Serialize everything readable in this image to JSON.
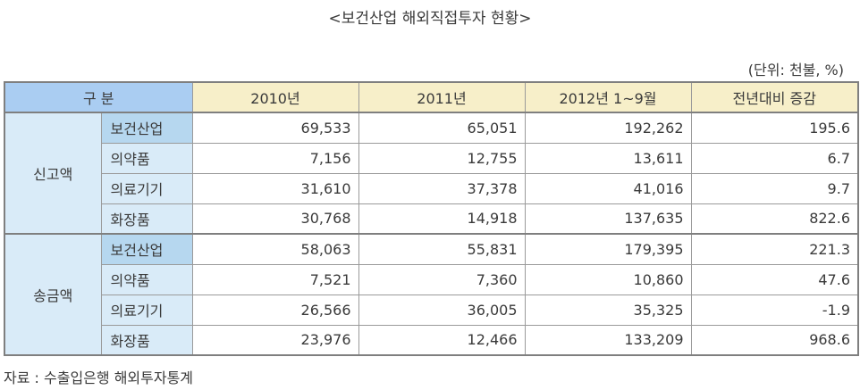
{
  "title": "<보건산업 해외직접투자 현황>",
  "unit": "(단위: 천불, %)",
  "table": {
    "headers": [
      "구 분",
      "2010년",
      "2011년",
      "2012년 1~9월",
      "전년대비 증감"
    ],
    "groups": [
      {
        "label": "신고액",
        "rows": [
          {
            "name": "보건산업",
            "values": [
              "69,533",
              "65,051",
              "192,262",
              "195.6"
            ]
          },
          {
            "name": "의약품",
            "values": [
              "7,156",
              "12,755",
              "13,611",
              "6.7"
            ]
          },
          {
            "name": "의료기기",
            "values": [
              "31,610",
              "37,378",
              "41,016",
              "9.7"
            ]
          },
          {
            "name": "화장품",
            "values": [
              "30,768",
              "14,918",
              "137,635",
              "822.6"
            ]
          }
        ]
      },
      {
        "label": "송금액",
        "rows": [
          {
            "name": "보건산업",
            "values": [
              "58,063",
              "55,831",
              "179,395",
              "221.3"
            ]
          },
          {
            "name": "의약품",
            "values": [
              "7,521",
              "7,360",
              "10,860",
              "47.6"
            ]
          },
          {
            "name": "의료기기",
            "values": [
              "26,566",
              "36,005",
              "35,325",
              "-1.9"
            ]
          },
          {
            "name": "화장품",
            "values": [
              "23,976",
              "12,466",
              "133,209",
              "968.6"
            ]
          }
        ]
      }
    ]
  },
  "source": "자료 : 수출입은행 해외투자통계"
}
